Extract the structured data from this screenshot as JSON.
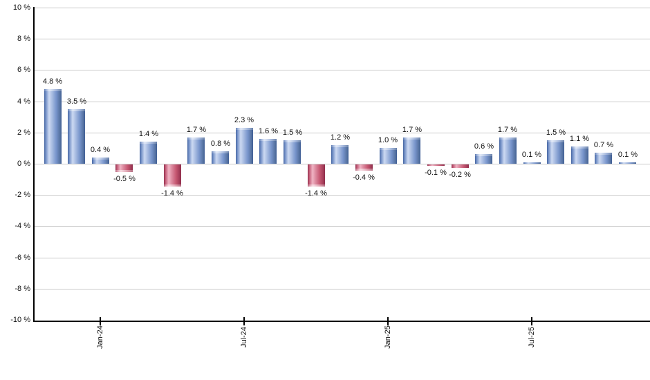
{
  "chart_data": {
    "type": "bar",
    "title": "",
    "xlabel": "",
    "ylabel": "",
    "ylim": [
      -10,
      10
    ],
    "y_tick_step": 2,
    "grid": true,
    "legend": "none",
    "values": [
      4.8,
      3.5,
      0.4,
      -0.5,
      1.4,
      -1.4,
      1.7,
      0.8,
      2.3,
      1.6,
      1.5,
      -1.4,
      1.2,
      -0.4,
      1.0,
      1.7,
      -0.1,
      -0.2,
      0.6,
      1.7,
      0.1,
      1.5,
      1.1,
      0.7,
      0.1
    ],
    "bar_value_labels": [
      "4.8 %",
      "3.5 %",
      "0.4 %",
      "-0.5 %",
      "1.4 %",
      "-1.4 %",
      "1.7 %",
      "0.8 %",
      "2.3 %",
      "1.6 %",
      "1.5 %",
      "-1.4 %",
      "1.2 %",
      "-0.4 %",
      "1.0 %",
      "1.7 %",
      "-0.1 %",
      "-0.2 %",
      "0.6 %",
      "1.7 %",
      "0.1 %",
      "1.5 %",
      "1.1 %",
      "0.7 %",
      "0.1 %"
    ],
    "y_axis_labels": [
      "10 %",
      "8 %",
      "6 %",
      "4 %",
      "2 %",
      "0 %",
      "-2 %",
      "-4 %",
      "-6 %",
      "-8 %",
      "-10 %"
    ],
    "x_axis_ticks": [
      {
        "bar_index": 2,
        "label": "Jan-24"
      },
      {
        "bar_index": 8,
        "label": "Jul-24"
      },
      {
        "bar_index": 14,
        "label": "Jan-25"
      },
      {
        "bar_index": 20,
        "label": "Jul-25"
      }
    ],
    "colors": {
      "positive_bar": "#7693CA",
      "negative_bar": "#C65872",
      "grid": "#C9C9C9",
      "axis": "#000000",
      "label_text": "#111111"
    }
  }
}
